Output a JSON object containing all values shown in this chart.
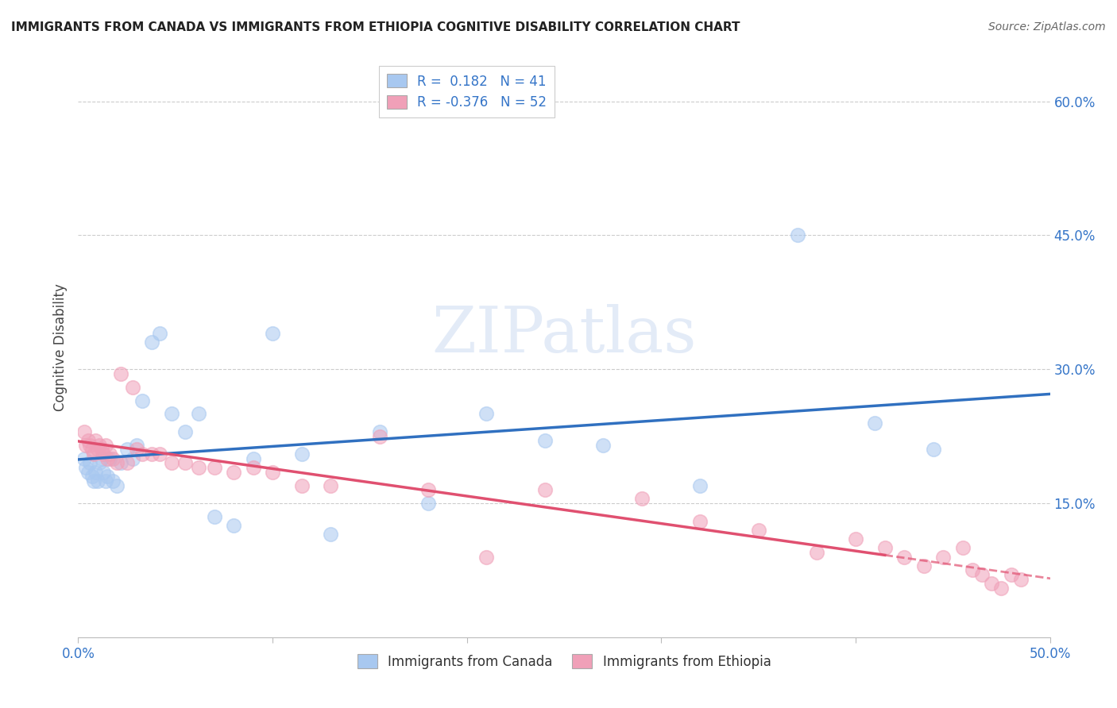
{
  "title": "IMMIGRANTS FROM CANADA VS IMMIGRANTS FROM ETHIOPIA COGNITIVE DISABILITY CORRELATION CHART",
  "source": "Source: ZipAtlas.com",
  "ylabel": "Cognitive Disability",
  "xlim": [
    0.0,
    0.5
  ],
  "ylim": [
    0.0,
    0.65
  ],
  "R_blue": 0.182,
  "N_blue": 41,
  "R_pink": -0.376,
  "N_pink": 52,
  "legend_label_blue": "Immigrants from Canada",
  "legend_label_pink": "Immigrants from Ethiopia",
  "watermark": "ZIPatlas",
  "blue_scatter_color": "#a8c8f0",
  "pink_scatter_color": "#f0a0b8",
  "blue_line_color": "#3070c0",
  "pink_line_color": "#e05070",
  "canada_x": [
    0.003,
    0.004,
    0.005,
    0.006,
    0.007,
    0.008,
    0.009,
    0.01,
    0.011,
    0.012,
    0.013,
    0.014,
    0.015,
    0.016,
    0.018,
    0.02,
    0.022,
    0.025,
    0.028,
    0.03,
    0.033,
    0.038,
    0.042,
    0.048,
    0.055,
    0.062,
    0.07,
    0.08,
    0.09,
    0.1,
    0.115,
    0.13,
    0.155,
    0.18,
    0.21,
    0.24,
    0.27,
    0.32,
    0.37,
    0.41,
    0.44
  ],
  "canada_y": [
    0.2,
    0.19,
    0.185,
    0.195,
    0.18,
    0.175,
    0.185,
    0.175,
    0.195,
    0.2,
    0.185,
    0.175,
    0.18,
    0.2,
    0.175,
    0.17,
    0.195,
    0.21,
    0.2,
    0.215,
    0.265,
    0.33,
    0.34,
    0.25,
    0.23,
    0.25,
    0.135,
    0.125,
    0.2,
    0.34,
    0.205,
    0.115,
    0.23,
    0.15,
    0.25,
    0.22,
    0.215,
    0.17,
    0.45,
    0.24,
    0.21
  ],
  "ethiopia_x": [
    0.003,
    0.004,
    0.005,
    0.006,
    0.007,
    0.008,
    0.009,
    0.01,
    0.011,
    0.012,
    0.013,
    0.014,
    0.015,
    0.016,
    0.018,
    0.02,
    0.022,
    0.025,
    0.028,
    0.03,
    0.033,
    0.038,
    0.042,
    0.048,
    0.055,
    0.062,
    0.07,
    0.08,
    0.09,
    0.1,
    0.115,
    0.13,
    0.155,
    0.18,
    0.21,
    0.24,
    0.29,
    0.32,
    0.35,
    0.38,
    0.4,
    0.415,
    0.425,
    0.435,
    0.445,
    0.455,
    0.46,
    0.465,
    0.47,
    0.475,
    0.48,
    0.485
  ],
  "ethiopia_y": [
    0.23,
    0.215,
    0.22,
    0.215,
    0.21,
    0.205,
    0.22,
    0.21,
    0.215,
    0.21,
    0.205,
    0.215,
    0.2,
    0.205,
    0.2,
    0.195,
    0.295,
    0.195,
    0.28,
    0.21,
    0.205,
    0.205,
    0.205,
    0.195,
    0.195,
    0.19,
    0.19,
    0.185,
    0.19,
    0.185,
    0.17,
    0.17,
    0.225,
    0.165,
    0.09,
    0.165,
    0.155,
    0.13,
    0.12,
    0.095,
    0.11,
    0.1,
    0.09,
    0.08,
    0.09,
    0.1,
    0.075,
    0.07,
    0.06,
    0.055,
    0.07,
    0.065
  ]
}
